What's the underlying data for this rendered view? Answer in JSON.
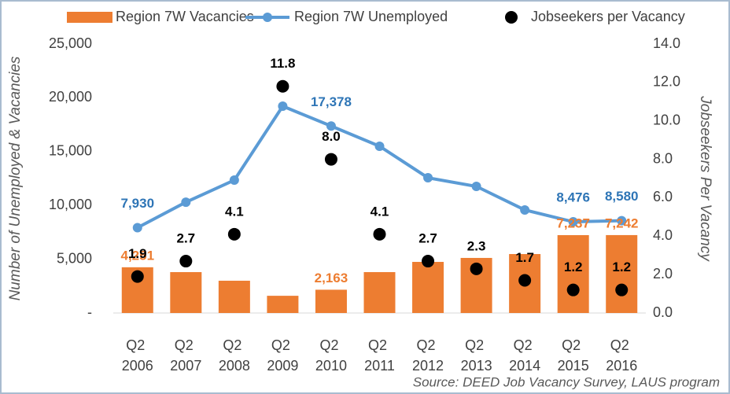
{
  "chart_data": {
    "type": "combo",
    "y_label": "Number of Unemployed & Vacancies",
    "y2_label": "Jobseekers Per Vacancy",
    "source": "Source: DEED Job Vacancy Survey, LAUS program",
    "categories": [
      "Q2 2006",
      "Q2 2007",
      "Q2 2008",
      "Q2 2009",
      "Q2 2010",
      "Q2 2011",
      "Q2 2012",
      "Q2 2013",
      "Q2 2014",
      "Q2 2015",
      "Q2 2016"
    ],
    "ylim": [
      0,
      25000
    ],
    "yticks": [
      {
        "value": 0,
        "label": "-"
      },
      {
        "value": 5000,
        "label": "5,000"
      },
      {
        "value": 10000,
        "label": "10,000"
      },
      {
        "value": 15000,
        "label": "15,000"
      },
      {
        "value": 20000,
        "label": "20,000"
      },
      {
        "value": 25000,
        "label": "25,000"
      }
    ],
    "y2lim": [
      0,
      14
    ],
    "y2ticks": [
      {
        "value": 0,
        "label": "0.0"
      },
      {
        "value": 2,
        "label": "2.0"
      },
      {
        "value": 4,
        "label": "4.0"
      },
      {
        "value": 6,
        "label": "6.0"
      },
      {
        "value": 8,
        "label": "8.0"
      },
      {
        "value": 10,
        "label": "10.0"
      },
      {
        "value": 12,
        "label": "12.0"
      },
      {
        "value": 14,
        "label": "14.0"
      }
    ],
    "legend": "top",
    "series": [
      {
        "name": "Region 7W Vacancies",
        "type": "bar",
        "color": "#ed7d31",
        "values": [
          4251,
          3800,
          3000,
          1600,
          2163,
          3800,
          4750,
          5120,
          5480,
          7237,
          7242
        ],
        "value_labels": [
          "4,251",
          null,
          null,
          null,
          "2,163",
          null,
          null,
          null,
          null,
          "7,237",
          "7,242"
        ]
      },
      {
        "name": "Region 7W Unemployed",
        "type": "line",
        "color": "#5b9bd5",
        "label_color": "#2e75b6",
        "values": [
          7930,
          10300,
          12350,
          19225,
          17378,
          15500,
          12570,
          11770,
          9580,
          8476,
          8580
        ],
        "value_labels": [
          "7,930",
          null,
          null,
          null,
          "17,378",
          null,
          null,
          null,
          null,
          "8,476",
          "8,580"
        ]
      },
      {
        "name": "Jobseekers per Vacancy",
        "type": "scatter",
        "axis": "y2",
        "color": "#000000",
        "values": [
          1.9,
          2.7,
          4.1,
          11.8,
          8.0,
          4.1,
          2.7,
          2.3,
          1.7,
          1.2,
          1.2
        ],
        "value_labels": [
          "1.9",
          "2.7",
          "4.1",
          "11.8",
          "8.0",
          "4.1",
          "2.7",
          "2.3",
          "1.7",
          "1.2",
          "1.2"
        ]
      }
    ]
  }
}
